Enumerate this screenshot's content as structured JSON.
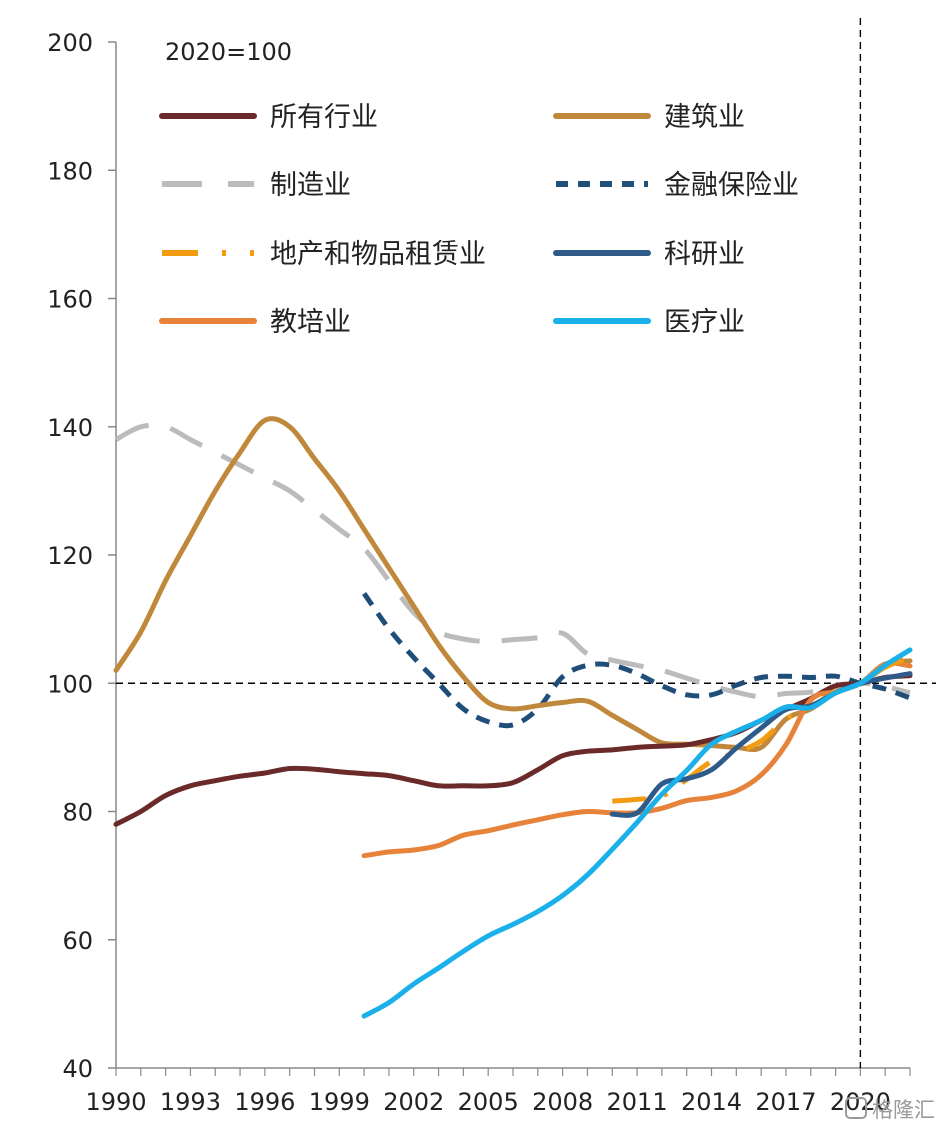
{
  "chart_data": {
    "type": "line",
    "subtitle": "2020=100",
    "ylim": [
      40,
      200
    ],
    "xlim": [
      1990,
      2022
    ],
    "y_ticks": [
      40,
      60,
      80,
      100,
      120,
      140,
      160,
      180,
      200
    ],
    "x_ticks": [
      1990,
      1993,
      1996,
      1999,
      2002,
      2005,
      2008,
      2011,
      2014,
      2017,
      2020
    ],
    "reference_lines": {
      "y": 100,
      "x": 2020
    },
    "grid": false,
    "legend_position": "top",
    "series": [
      {
        "name": "所有行业",
        "color": "#6B2A2A",
        "dash": "solid",
        "x": [
          1990,
          1991,
          1992,
          1993,
          1994,
          1995,
          1996,
          1997,
          1998,
          1999,
          2000,
          2001,
          2002,
          2003,
          2004,
          2005,
          2006,
          2007,
          2008,
          2009,
          2010,
          2011,
          2012,
          2013,
          2014,
          2015,
          2016,
          2017,
          2018,
          2019,
          2020,
          2021,
          2022
        ],
        "values": [
          78,
          80,
          82.5,
          84,
          84.8,
          85.5,
          86,
          86.7,
          86.6,
          86.2,
          85.9,
          85.6,
          84.8,
          84,
          84,
          84,
          84.5,
          86.5,
          88.7,
          89.4,
          89.6,
          90,
          90.2,
          90.4,
          91.2,
          92.3,
          94.2,
          95.9,
          97.6,
          99.6,
          100,
          100.9,
          101.2
        ]
      },
      {
        "name": "建筑业",
        "color": "#C0883A",
        "dash": "solid",
        "x": [
          1990,
          1991,
          1992,
          1993,
          1994,
          1995,
          1996,
          1997,
          1998,
          1999,
          2000,
          2001,
          2002,
          2003,
          2004,
          2005,
          2006,
          2007,
          2008,
          2009,
          2010,
          2011,
          2012,
          2013,
          2014,
          2015,
          2016,
          2017,
          2018,
          2019,
          2020,
          2021,
          2022
        ],
        "values": [
          102,
          108,
          116,
          123,
          130,
          136,
          141,
          140,
          135,
          130,
          124,
          118,
          112,
          106,
          101,
          97,
          96,
          96.5,
          97,
          97.2,
          95,
          92.8,
          90.7,
          90.5,
          90.3,
          90,
          90,
          94.4,
          96,
          98.5,
          100,
          102.9,
          103.5
        ]
      },
      {
        "name": "制造业",
        "color": "#BBBBBB",
        "dash": "longdash",
        "x": [
          1990,
          1991,
          1992,
          1993,
          1994,
          1995,
          1996,
          1997,
          1998,
          1999,
          2000,
          2001,
          2002,
          2003,
          2004,
          2005,
          2006,
          2007,
          2008,
          2009,
          2010,
          2011,
          2012,
          2013,
          2014,
          2015,
          2016,
          2017,
          2018,
          2019,
          2020,
          2021,
          2022
        ],
        "values": [
          138,
          140,
          140,
          138,
          136,
          134,
          132,
          130,
          127,
          124,
          121,
          116,
          111,
          108,
          106.9,
          106.5,
          106.8,
          107.1,
          107.8,
          104.6,
          103.6,
          102.8,
          102,
          100.8,
          99.6,
          98.6,
          97.9,
          98.4,
          98.6,
          99.3,
          100,
          99.5,
          98.5
        ]
      },
      {
        "name": "金融保险业",
        "color": "#1F4E79",
        "dash": "shortdash",
        "x": [
          2000,
          2001,
          2002,
          2003,
          2004,
          2005,
          2006,
          2007,
          2008,
          2009,
          2010,
          2011,
          2012,
          2013,
          2014,
          2015,
          2016,
          2017,
          2018,
          2019,
          2020,
          2021,
          2022
        ],
        "values": [
          114,
          108.5,
          104,
          100,
          96,
          94,
          93.5,
          96,
          101,
          102.8,
          102.8,
          101.5,
          99.6,
          98.2,
          98.2,
          99.7,
          100.9,
          101.1,
          100.9,
          101.1,
          100,
          99.1,
          97.7
        ]
      },
      {
        "name": "地产和物品租赁业",
        "color": "#F39C12",
        "dash": "dashdot",
        "x": [
          2010,
          2011,
          2012,
          2013,
          2014,
          2015,
          2016,
          2017,
          2018,
          2019,
          2020,
          2021,
          2022
        ],
        "values": [
          81.6,
          81.9,
          82.4,
          85,
          87.8,
          89.2,
          91,
          94.4,
          96.2,
          98.7,
          100,
          102.5,
          104
        ]
      },
      {
        "name": "科研业",
        "color": "#2E5B8A",
        "dash": "solid",
        "x": [
          2010,
          2011,
          2012,
          2013,
          2014,
          2015,
          2016,
          2017,
          2018,
          2019,
          2020,
          2021,
          2022
        ],
        "values": [
          79.6,
          79.8,
          84.3,
          85.1,
          86.5,
          89.9,
          93,
          95.9,
          96.5,
          98.5,
          100,
          100.8,
          101.5
        ]
      },
      {
        "name": "教培业",
        "color": "#E6823A",
        "dash": "solid",
        "x": [
          2000,
          2001,
          2002,
          2003,
          2004,
          2005,
          2006,
          2007,
          2008,
          2009,
          2010,
          2011,
          2012,
          2013,
          2014,
          2015,
          2016,
          2017,
          2018,
          2019,
          2020,
          2021,
          2022
        ],
        "values": [
          73.1,
          73.7,
          74,
          74.7,
          76.3,
          77,
          77.9,
          78.7,
          79.5,
          80,
          79.8,
          79.8,
          80.5,
          81.7,
          82.2,
          83.2,
          85.7,
          90.4,
          97.4,
          98.7,
          100,
          103,
          102.7
        ]
      },
      {
        "name": "医疗业",
        "color": "#1AB0EA",
        "dash": "solid",
        "x": [
          2000,
          2001,
          2002,
          2003,
          2004,
          2005,
          2006,
          2007,
          2008,
          2009,
          2010,
          2011,
          2012,
          2013,
          2014,
          2015,
          2016,
          2017,
          2018,
          2019,
          2020,
          2021,
          2022
        ],
        "values": [
          48.1,
          50.2,
          53.1,
          55.6,
          58.2,
          60.6,
          62.4,
          64.4,
          66.9,
          70.1,
          74.1,
          78.3,
          82.7,
          86.4,
          90.5,
          92.5,
          94.2,
          96.3,
          96.2,
          98.5,
          100,
          102.8,
          105.2
        ]
      }
    ]
  },
  "watermark": "格隆汇"
}
